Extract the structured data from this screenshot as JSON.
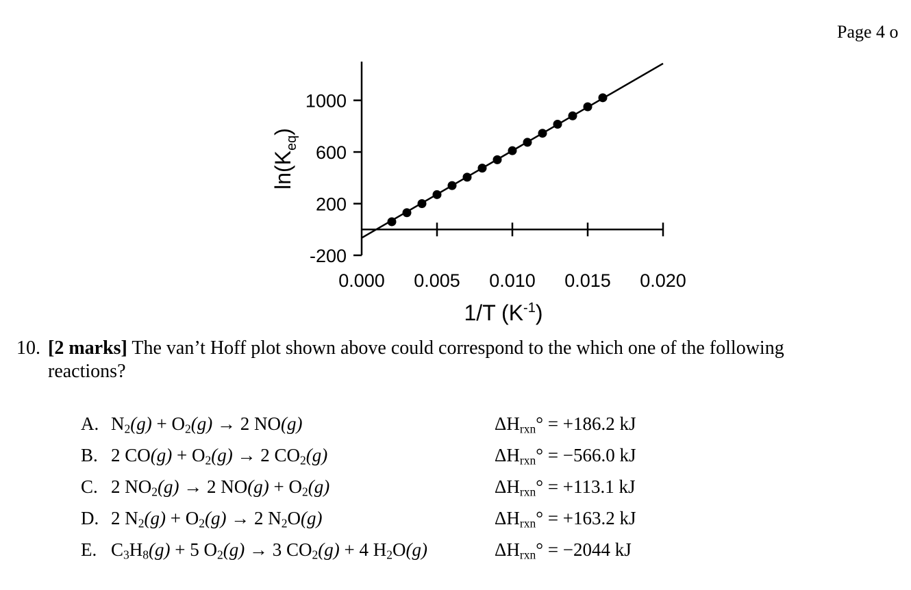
{
  "page": {
    "number_label": "Page 4 o"
  },
  "chart_data": {
    "type": "scatter",
    "xlabel": "1/T (K",
    "xlabel_sup": "-1",
    "xlabel_close": ")",
    "ylabel": "ln(K",
    "ylabel_sub": "eq",
    "ylabel_close": ")",
    "xlim": [
      0.0,
      0.02
    ],
    "ylim": [
      -200,
      1300
    ],
    "x_ticks": [
      0.0,
      0.005,
      0.01,
      0.015,
      0.02
    ],
    "x_tick_labels": [
      "0.000",
      "0.005",
      "0.010",
      "0.015",
      "0.020"
    ],
    "y_ticks": [
      -200,
      200,
      600,
      1000
    ],
    "y_tick_labels": [
      "-200",
      "200",
      "600",
      "1000"
    ],
    "series": [
      {
        "x": [
          0.002,
          0.003,
          0.004,
          0.005,
          0.006,
          0.007,
          0.008,
          0.009,
          0.01,
          0.011,
          0.012,
          0.013,
          0.014,
          0.015,
          0.016
        ],
        "y": [
          60,
          130,
          200,
          270,
          340,
          405,
          475,
          540,
          610,
          675,
          745,
          815,
          880,
          950,
          1020
        ]
      }
    ],
    "fit_line": {
      "slope": 67500,
      "intercept": -65,
      "x_range": [
        0.0,
        0.02
      ]
    },
    "grid": false
  },
  "question": {
    "number": "10.",
    "marks": "[2 marks]",
    "text_line1": "The van’t Hoff plot shown above could correspond to the which one of the following",
    "text_line2": "reactions?"
  },
  "options": [
    {
      "letter": "A.",
      "dh_value": " = +186.2 kJ"
    },
    {
      "letter": "B.",
      "dh_value": " = −566.0 kJ"
    },
    {
      "letter": "C.",
      "dh_value": " = +113.1 kJ"
    },
    {
      "letter": "D.",
      "dh_value": " = +163.2 kJ"
    },
    {
      "letter": "E.",
      "dh_value": " = −2044 kJ"
    }
  ],
  "dh_label": {
    "main": "ΔH",
    "sub": "rxn",
    "sup": "°"
  },
  "reactions": {
    "A": {
      "r1": "N",
      "r1s": "2",
      "r1p": "(g)",
      "plus": " + ",
      "r2": "O",
      "r2s": "2",
      "r2p": "(g)",
      "arrow": " → ",
      "p1": "2 NO",
      "p1p": "(g)"
    },
    "B": {
      "r1": "2 CO",
      "r1p": "(g)",
      "plus": " + ",
      "r2": "O",
      "r2s": "2",
      "r2p": "(g)",
      "arrow": " → ",
      "p1": "2 CO",
      "p1s": "2",
      "p1p": "(g)"
    },
    "C": {
      "r1": "2 NO",
      "r1s": "2",
      "r1p": "(g)",
      "arrow": " → ",
      "p1": "2 NO",
      "p1p": "(g)",
      "plus": " + ",
      "p2": "O",
      "p2s": "2",
      "p2p": "(g)"
    },
    "D": {
      "r1": "2 N",
      "r1s": "2",
      "r1p": "(g)",
      "plus": " + ",
      "r2": "O",
      "r2s": "2",
      "r2p": "(g)",
      "arrow": " → ",
      "p1": "2 N",
      "p1s": "2",
      "p1b": "O",
      "p1p": "(g)"
    },
    "E": {
      "r1": "C",
      "r1s": "3",
      "r1b": "H",
      "r1s2": "8",
      "r1p": "(g)",
      "plus": " + ",
      "r2": "5 O",
      "r2s": "2",
      "r2p": "(g)",
      "arrow": " → ",
      "p1": "3 CO",
      "p1s": "2",
      "p1p": "(g)",
      "plus2": " + ",
      "p2": "4 H",
      "p2s": "2",
      "p2b": "O",
      "p2p": "(g)"
    }
  }
}
